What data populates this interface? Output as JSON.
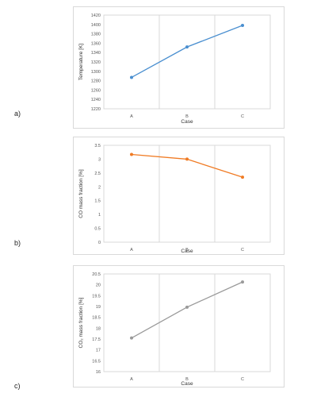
{
  "panels": [
    {
      "label": "a)"
    },
    {
      "label": "b)"
    },
    {
      "label": "c)"
    }
  ],
  "chart_data": [
    {
      "type": "line",
      "categories": [
        "A",
        "B",
        "C"
      ],
      "series": [
        {
          "values": [
            1287,
            1352,
            1398
          ],
          "color": "#4a8fd0"
        }
      ],
      "xlabel": "Case",
      "ylabel": "Temperature [K]",
      "ylim": [
        1220,
        1420
      ],
      "yticks": [
        "1220",
        "1240",
        "1260",
        "1280",
        "1300",
        "1320",
        "1340",
        "1360",
        "1380",
        "1400",
        "1420"
      ],
      "grid": "vertical"
    },
    {
      "type": "line",
      "categories": [
        "A",
        "B",
        "C"
      ],
      "series": [
        {
          "values": [
            3.17,
            3.0,
            2.35
          ],
          "color": "#f07b24"
        }
      ],
      "xlabel": "Case",
      "ylabel": "CO mass fraction [%]",
      "ylim": [
        0,
        3.5
      ],
      "yticks": [
        "0",
        "0.5",
        "1",
        "1.5",
        "2",
        "2.5",
        "3",
        "3.5"
      ],
      "grid": "vertical"
    },
    {
      "type": "line",
      "categories": [
        "A",
        "B",
        "C"
      ],
      "series": [
        {
          "values": [
            17.55,
            18.97,
            20.13
          ],
          "color": "#9a9a9a"
        }
      ],
      "xlabel": "Case",
      "ylabel": "CO₂ mass fraction [%]",
      "ylim": [
        16,
        20.5
      ],
      "yticks": [
        "16",
        "16.5",
        "17",
        "17.5",
        "18",
        "18.5",
        "19",
        "19.5",
        "20",
        "20.5"
      ],
      "grid": "vertical"
    }
  ]
}
